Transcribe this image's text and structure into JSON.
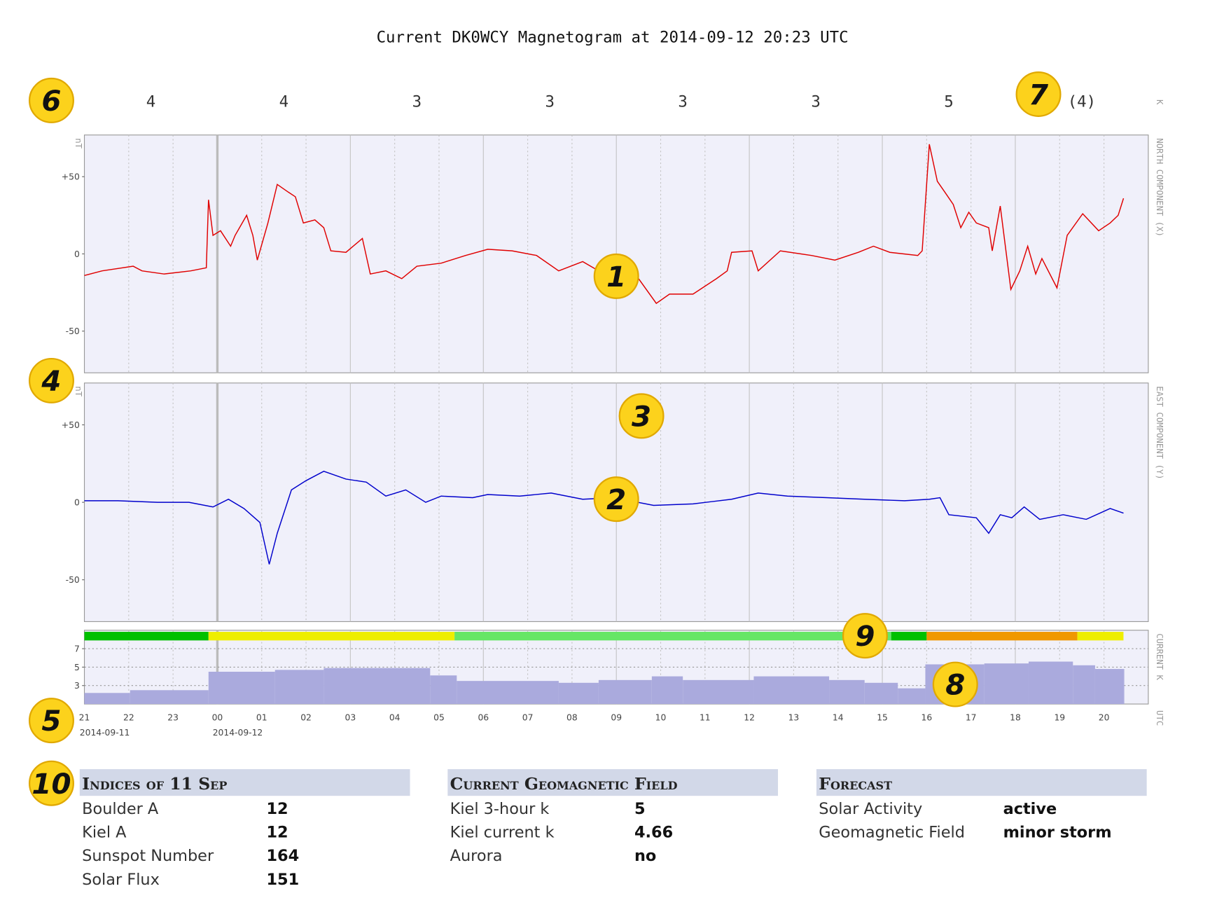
{
  "title": "Current DK0WCY Magnetogram at 2014-09-12 20:23 UTC",
  "k_index": {
    "label": "K",
    "values": [
      4,
      4,
      3,
      3,
      3,
      3,
      5,
      4
    ],
    "value_labels": [
      "4",
      "4",
      "3",
      "3",
      "3",
      "3",
      "5",
      "(4)"
    ]
  },
  "chart_data": [
    {
      "type": "line",
      "name": "NORTH COMPONENT (X)",
      "unit": "nT",
      "color": "#e00000",
      "x": [
        0,
        0.4,
        1.1,
        1.3,
        1.8,
        2.4,
        2.75,
        2.8,
        2.9,
        3.07,
        3.3,
        3.4,
        3.66,
        3.8,
        3.9,
        4.14,
        4.35,
        4.6,
        4.76,
        4.94,
        5.2,
        5.4,
        5.56,
        5.9,
        6.27,
        6.45,
        6.8,
        7.16,
        7.5,
        8.05,
        8.6,
        9.1,
        9.65,
        10.2,
        10.7,
        11.24,
        11.6,
        12.13,
        12.5,
        12.9,
        13.2,
        13.73,
        14.26,
        14.5,
        14.6,
        15.06,
        15.2,
        15.7,
        16.4,
        16.93,
        17.46,
        17.8,
        18.17,
        18.8,
        18.9,
        19.06,
        19.24,
        19.41,
        19.6,
        19.77,
        19.95,
        20.12,
        20.4,
        20.48,
        20.66,
        20.9,
        21.1,
        21.28,
        21.46,
        21.6,
        21.94,
        22.17,
        22.52,
        22.88,
        23.14,
        23.32,
        23.44
      ],
      "values": [
        -14,
        -11,
        -8,
        -11,
        -13,
        -11,
        -9,
        35,
        12,
        15,
        5,
        12,
        25,
        12,
        -4,
        20,
        45,
        40,
        37,
        20,
        22,
        17,
        2,
        1,
        10,
        -13,
        -11,
        -16,
        -8,
        -6,
        -1,
        3,
        2,
        -1,
        -11,
        -5,
        -11,
        -12,
        -16,
        -32,
        -26,
        -26,
        -16,
        -11,
        1,
        2,
        -11,
        2,
        -1,
        -4,
        1,
        5,
        1,
        -1,
        2,
        71,
        47,
        40,
        32,
        17,
        27,
        20,
        17,
        2,
        31,
        -23,
        -11,
        5,
        -13,
        -3,
        -22,
        12,
        26,
        15,
        20,
        25,
        36
      ],
      "xlim": [
        0,
        24
      ],
      "ylim": [
        -77,
        77
      ],
      "yticks": [
        {
          "value": 50,
          "label": "+50"
        },
        0,
        -50
      ]
    },
    {
      "type": "line",
      "name": "EAST COMPONENT (Y)",
      "unit": "nT",
      "color": "#0000cc",
      "x": [
        0,
        0.76,
        1.65,
        2.36,
        2.9,
        3.25,
        3.6,
        3.96,
        4.17,
        4.35,
        4.67,
        5.0,
        5.4,
        5.9,
        6.36,
        6.8,
        7.25,
        7.7,
        8.05,
        8.76,
        9.1,
        9.82,
        10.53,
        11.24,
        11.95,
        12.84,
        13.73,
        14.6,
        15.2,
        15.86,
        16.75,
        17.6,
        18.5,
        19.06,
        19.3,
        19.5,
        20.12,
        20.4,
        20.66,
        20.92,
        21.2,
        21.55,
        22.08,
        22.6,
        23.14,
        23.44
      ],
      "values": [
        1,
        1,
        0,
        0,
        -3,
        2,
        -4,
        -13,
        -40,
        -20,
        8,
        14,
        20,
        15,
        13,
        4,
        8,
        0,
        4,
        3,
        5,
        4,
        6,
        2,
        3,
        -2,
        -1,
        2,
        6,
        4,
        3,
        2,
        1,
        2,
        3,
        -8,
        -10,
        -20,
        -8,
        -10,
        -3,
        -11,
        -8,
        -11,
        -4,
        -7
      ],
      "xlim": [
        0,
        24
      ],
      "ylim": [
        -77,
        77
      ],
      "yticks": [
        {
          "value": 50,
          "label": "+50"
        },
        0,
        -50
      ]
    },
    {
      "type": "step-area",
      "name": "CURRENT K",
      "x_unit": "UTC",
      "color": "#aaaadd",
      "x": [
        0,
        1.03,
        2.8,
        4.3,
        5.4,
        7.8,
        8.4,
        10.7,
        11.6,
        12.8,
        13.5,
        15.1,
        16.8,
        17.6,
        18.35,
        18.97,
        20.3,
        21.3,
        22.3,
        22.8,
        23.44
      ],
      "values": [
        2.2,
        2.5,
        4.5,
        4.7,
        4.9,
        4.1,
        3.5,
        3.3,
        3.6,
        4.0,
        3.6,
        4.0,
        3.6,
        3.3,
        2.7,
        5.3,
        5.4,
        5.6,
        5.2,
        4.8,
        4.8
      ],
      "status_bar": [
        {
          "x0": 0,
          "x1": 2.8,
          "color": "#00c000"
        },
        {
          "x0": 2.8,
          "x1": 8.35,
          "color": "#eeee00"
        },
        {
          "x0": 8.35,
          "x1": 18.2,
          "color": "#66e666"
        },
        {
          "x0": 18.2,
          "x1": 19.0,
          "color": "#00c000"
        },
        {
          "x0": 19.0,
          "x1": 22.4,
          "color": "#f09800"
        },
        {
          "x0": 22.4,
          "x1": 23.44,
          "color": "#eeee00"
        }
      ],
      "xlim": [
        0,
        24
      ],
      "ylim": [
        1,
        9
      ],
      "yticks": [
        3,
        5,
        7
      ],
      "xticks": [
        {
          "value": 0,
          "label": "21"
        },
        {
          "value": 1,
          "label": "22"
        },
        {
          "value": 2,
          "label": "23"
        },
        {
          "value": 3,
          "label": "00"
        },
        {
          "value": 4,
          "label": "01"
        },
        {
          "value": 5,
          "label": "02"
        },
        {
          "value": 6,
          "label": "03"
        },
        {
          "value": 7,
          "label": "04"
        },
        {
          "value": 8,
          "label": "05"
        },
        {
          "value": 9,
          "label": "06"
        },
        {
          "value": 10,
          "label": "07"
        },
        {
          "value": 11,
          "label": "08"
        },
        {
          "value": 12,
          "label": "09"
        },
        {
          "value": 13,
          "label": "10"
        },
        {
          "value": 14,
          "label": "11"
        },
        {
          "value": 15,
          "label": "12"
        },
        {
          "value": 16,
          "label": "13"
        },
        {
          "value": 17,
          "label": "14"
        },
        {
          "value": 18,
          "label": "15"
        },
        {
          "value": 19,
          "label": "16"
        },
        {
          "value": 20,
          "label": "17"
        },
        {
          "value": 21,
          "label": "18"
        },
        {
          "value": 22,
          "label": "19"
        },
        {
          "value": 23,
          "label": "20"
        }
      ],
      "x_date_labels": [
        {
          "value": 0,
          "label": "2014-09-11"
        },
        {
          "value": 3,
          "label": "2014-09-12"
        }
      ]
    }
  ],
  "annotations": [
    "1",
    "2",
    "3",
    "4",
    "5",
    "6",
    "7",
    "8",
    "9",
    "10"
  ],
  "tables": [
    {
      "title": "Indices of 11 Sep",
      "rows": [
        [
          "Boulder A",
          12
        ],
        [
          "Kiel A",
          12
        ],
        [
          "Sunspot Number",
          164
        ],
        [
          "Solar Flux",
          151
        ]
      ]
    },
    {
      "title": "Current Geomagnetic Field",
      "rows": [
        [
          "Kiel 3-hour k",
          5
        ],
        [
          "Kiel current k",
          4.66
        ],
        [
          "Aurora",
          "no"
        ]
      ]
    },
    {
      "title": "Forecast",
      "rows": [
        [
          "Solar Activity",
          "active"
        ],
        [
          "Geomagnetic Field",
          "minor storm"
        ]
      ]
    }
  ]
}
